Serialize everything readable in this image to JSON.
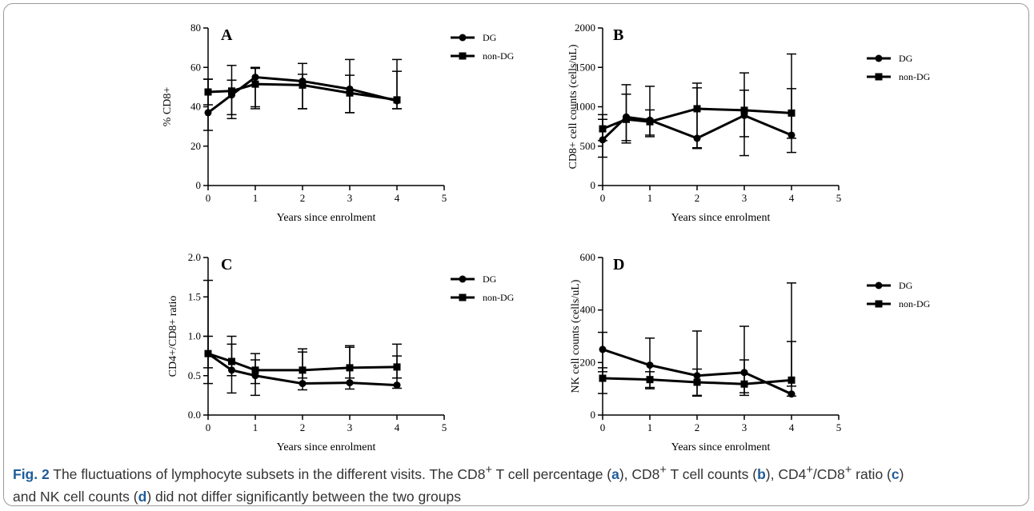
{
  "caption": {
    "label": "Fig. 2",
    "line1_a": " The fluctuations of lymphocyte subsets in the different visits. The CD8",
    "sup_plus": "+",
    "line1_b": " T cell percentage (",
    "ref_a": "a",
    "line1_c": "), CD8",
    "line1_d": " T cell counts (",
    "ref_b": "b",
    "line1_e": "), CD4",
    "line1_f": "/CD8",
    "line1_g": " ratio (",
    "ref_c": "c",
    "line1_h": ")",
    "line2_a": "and NK cell counts (",
    "ref_d": "d",
    "line2_b": ") did not differ significantly between the two groups"
  },
  "chart_data": [
    {
      "type": "line",
      "panel": "A",
      "xlabel": "Years since enrolment",
      "ylabel": "% CD8+",
      "xlim": [
        0,
        5
      ],
      "ylim": [
        0,
        80
      ],
      "xticks": [
        0,
        1,
        2,
        3,
        4,
        5
      ],
      "yticks": [
        0,
        20,
        40,
        60,
        80
      ],
      "legend_position": "top-right",
      "x": [
        0,
        0.5,
        1,
        2,
        3,
        4
      ],
      "series": [
        {
          "name": "DG",
          "marker": "circle",
          "values": [
            37,
            46,
            55,
            53,
            49,
            43
          ],
          "err_lo": [
            28,
            34,
            40,
            39,
            37,
            39
          ],
          "err_hi": [
            54,
            61,
            60,
            62,
            64,
            64
          ]
        },
        {
          "name": "non-DG",
          "marker": "square",
          "values": [
            47.5,
            48,
            51.5,
            51,
            47,
            43.5
          ],
          "err_lo": [
            41,
            36,
            39,
            39,
            37,
            39
          ],
          "err_hi": [
            54,
            53.5,
            59.5,
            56.5,
            56,
            58
          ]
        }
      ]
    },
    {
      "type": "line",
      "panel": "B",
      "xlabel": "Years since enrolment",
      "ylabel": "CD8+ cell counts (cells/uL)",
      "xlim": [
        0,
        5
      ],
      "ylim": [
        0,
        2000
      ],
      "xticks": [
        0,
        1,
        2,
        3,
        4,
        5
      ],
      "yticks": [
        0,
        500,
        1000,
        1500,
        2000
      ],
      "legend_position": "top-right",
      "x": [
        0,
        0.5,
        1,
        2,
        3,
        4
      ],
      "series": [
        {
          "name": "DG",
          "marker": "circle",
          "values": [
            580,
            870,
            830,
            600,
            890,
            640
          ],
          "err_lo": [
            360,
            540,
            620,
            470,
            380,
            420
          ],
          "err_hi": [
            840,
            1280,
            1260,
            1300,
            1430,
            1670
          ]
        },
        {
          "name": "non-DG",
          "marker": "square",
          "values": [
            720,
            840,
            810,
            975,
            955,
            920
          ],
          "err_lo": [
            570,
            570,
            640,
            480,
            620,
            600
          ],
          "err_hi": [
            900,
            1160,
            960,
            1240,
            1210,
            1230
          ]
        }
      ]
    },
    {
      "type": "line",
      "panel": "C",
      "xlabel": "Years since enrolment",
      "ylabel": "CD4+/CD8+ ratio",
      "xlim": [
        0,
        5
      ],
      "ylim": [
        0,
        2.0
      ],
      "xticks": [
        0,
        1,
        2,
        3,
        4,
        5
      ],
      "yticks": [
        "0.0",
        "0.5",
        "1.0",
        "1.5",
        "2.0"
      ],
      "legend_position": "top-right",
      "x": [
        0,
        0.5,
        1,
        2,
        3,
        4
      ],
      "series": [
        {
          "name": "DG",
          "marker": "circle",
          "values": [
            0.78,
            0.57,
            0.5,
            0.4,
            0.41,
            0.38
          ],
          "err_lo": [
            0.4,
            0.28,
            0.25,
            0.32,
            0.33,
            0.34
          ],
          "err_hi": [
            1.71,
            1.0,
            0.78,
            0.84,
            0.88,
            0.9
          ]
        },
        {
          "name": "non-DG",
          "marker": "square",
          "values": [
            0.78,
            0.68,
            0.57,
            0.57,
            0.6,
            0.61
          ],
          "err_lo": [
            0.6,
            0.5,
            0.4,
            0.47,
            0.47,
            0.47
          ],
          "err_hi": [
            1.0,
            0.9,
            0.7,
            0.8,
            0.86,
            0.75
          ]
        }
      ]
    },
    {
      "type": "line",
      "panel": "D",
      "xlabel": "Years since enrolment",
      "ylabel": "NK cell counts (cells/uL)",
      "xlim": [
        0,
        5
      ],
      "ylim": [
        0,
        600
      ],
      "xticks": [
        0,
        1,
        2,
        3,
        4,
        5
      ],
      "yticks": [
        0,
        200,
        400,
        600
      ],
      "legend_position": "top-right",
      "x": [
        0,
        1,
        2,
        3,
        4
      ],
      "series": [
        {
          "name": "DG",
          "marker": "circle",
          "values": [
            250,
            190,
            150,
            162,
            80
          ],
          "err_lo": [
            165,
            105,
            75,
            75,
            72
          ],
          "err_hi": [
            315,
            293,
            320,
            338,
            503
          ]
        },
        {
          "name": "non-DG",
          "marker": "square",
          "values": [
            140,
            135,
            125,
            118,
            133
          ],
          "err_lo": [
            82,
            100,
            72,
            85,
            110
          ],
          "err_hi": [
            180,
            165,
            175,
            210,
            280
          ]
        }
      ]
    }
  ]
}
